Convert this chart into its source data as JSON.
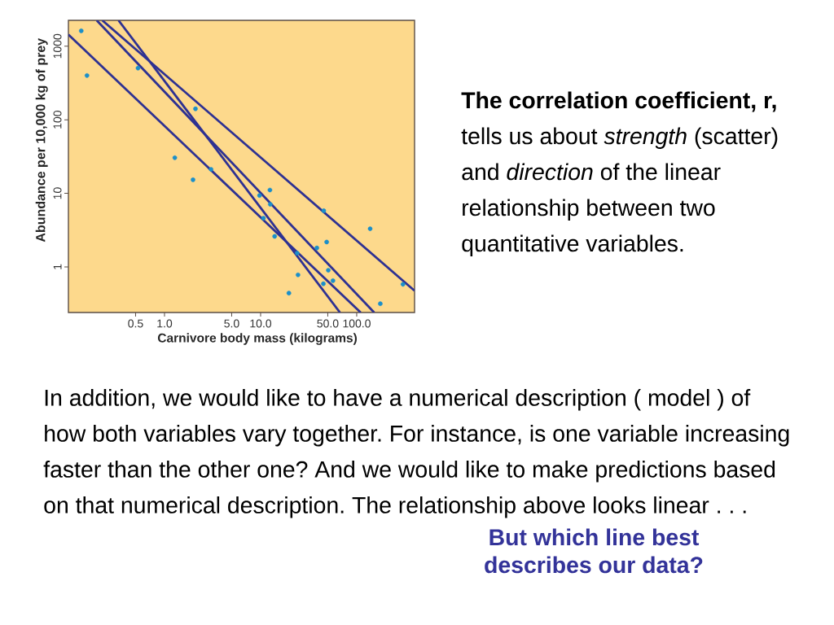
{
  "chart_data": {
    "type": "scatter",
    "xlabel": "Carnivore body mass (kilograms)",
    "ylabel": "Abundance per 10,000 kg of prey",
    "log": "xy",
    "xlim": [
      0.1,
      400
    ],
    "ylim": [
      0.24,
      2250
    ],
    "xticks": [
      0.5,
      {
        "value": 1,
        "label": "1.0"
      },
      {
        "value": 5,
        "label": "5.0"
      },
      {
        "value": 10,
        "label": "10.0"
      },
      {
        "value": 50,
        "label": "50.0"
      },
      {
        "value": 100,
        "label": "100.0"
      }
    ],
    "yticks": [
      1,
      10,
      100,
      1000
    ],
    "series": [
      {
        "color": "#1b8fc9",
        "marker": "circle",
        "x": [
          0.136,
          0.156,
          0.53,
          2.1,
          1.28,
          1.98,
          3.05,
          12.5,
          9.75,
          12.6,
          10.7,
          14.0,
          45.4,
          138,
          48.7,
          38.5,
          24.0,
          50.6,
          24.5,
          56.6,
          45.0,
          19.7,
          303,
          176
        ],
        "values": [
          1620,
          400,
          505,
          141,
          30.5,
          15.3,
          21.2,
          11.1,
          9.36,
          7.1,
          4.6,
          2.6,
          5.8,
          3.3,
          2.18,
          1.81,
          1.54,
          0.9,
          0.78,
          0.65,
          0.59,
          0.44,
          0.58,
          0.316
        ]
      },
      {
        "type": "line",
        "color": "#2e3192",
        "line_style": "solid",
        "x": [
          0.1,
          110
        ],
        "values": [
          1440,
          0.24
        ]
      },
      {
        "type": "line",
        "color": "#2e3192",
        "line_style": "solid",
        "x": [
          0.225,
          400
        ],
        "values": [
          2250,
          0.475
        ]
      },
      {
        "type": "line",
        "color": "#2e3192",
        "line_style": "solid",
        "x": [
          0.197,
          152
        ],
        "values": [
          2250,
          0.24
        ]
      },
      {
        "type": "line",
        "color": "#2e3192",
        "line_style": "solid",
        "x": [
          0.332,
          67
        ],
        "values": [
          2250,
          0.24
        ]
      }
    ],
    "annotations": [
      "**The correlation coefficient, r,** tells us about *strength* (scatter) and *direction* of the linear relationship between two quantitative variables.",
      "In addition, we would like to have a numerical description ( model ) of how both variables vary together. For instance, is one variable increasing faster than the other one? And we would like to make predictions based on that numerical description. The relationship above looks linear . . .",
      "But which line best describes our data?"
    ]
  }
}
